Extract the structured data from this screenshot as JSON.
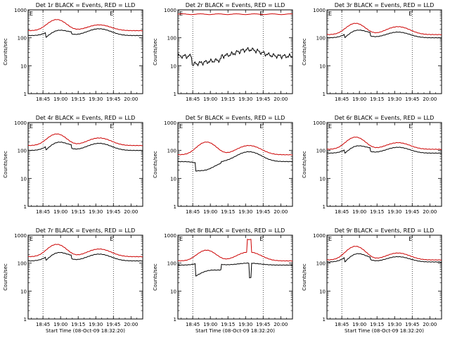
{
  "chart_data": [
    {
      "type": "line",
      "title": "Det 1r BLACK = Events, RED = LLD",
      "ylabel": "Counts/sec",
      "xlabel": "Start Time (08-Oct-09 18:32:20)",
      "show_xlabel": false,
      "x_ticks": [
        "18:45",
        "19:00",
        "19:15",
        "19:30",
        "19:45",
        "20:00"
      ],
      "y_ticks": [
        "1",
        "10",
        "100",
        "1000"
      ],
      "ylim": [
        1,
        1000
      ],
      "scale": "log",
      "xlim": [
        "18:32:20",
        "20:10"
      ],
      "vlines": [
        "18:45",
        "19:45"
      ],
      "markers": [
        "E",
        "E"
      ],
      "series": [
        {
          "color": "#cc0000",
          "shape": "bump2",
          "base": 180,
          "peak1": 450,
          "peak2": 290
        },
        {
          "color": "#000000",
          "shape": "bump2dip",
          "base": 120,
          "peak1": 200,
          "peak2": 210,
          "dip": 80
        }
      ]
    },
    {
      "type": "line",
      "title": "Det 2r BLACK = Events, RED = LLD",
      "ylabel": "Counts/sec",
      "xlabel": "Start Time (08-Oct-09 18:32:20)",
      "show_xlabel": false,
      "x_ticks": [
        "18:45",
        "19:00",
        "19:15",
        "19:30",
        "19:45",
        "20:00"
      ],
      "y_ticks": [
        "1",
        "10",
        "100",
        "1000"
      ],
      "ylim": [
        1,
        1000
      ],
      "scale": "log",
      "xlim": [
        "18:32:20",
        "20:10"
      ],
      "vlines": [
        "18:45",
        "19:45"
      ],
      "markers": [
        "E",
        "E"
      ],
      "series": [
        {
          "color": "#cc0000",
          "shape": "flat",
          "base": 700
        },
        {
          "color": "#000000",
          "shape": "noisy",
          "base": 22,
          "peak1": 15,
          "peak2": 38,
          "dip": 11
        }
      ]
    },
    {
      "type": "line",
      "title": "Det 3r BLACK = Events, RED = LLD",
      "ylabel": "Counts/sec",
      "xlabel": "Start Time (08-Oct-09 18:32:20)",
      "show_xlabel": false,
      "x_ticks": [
        "18:45",
        "19:00",
        "19:15",
        "19:30",
        "19:45",
        "20:00"
      ],
      "y_ticks": [
        "1",
        "10",
        "100",
        "1000"
      ],
      "ylim": [
        1,
        1000
      ],
      "scale": "log",
      "xlim": [
        "18:32:20",
        "20:10"
      ],
      "vlines": [
        "18:45",
        "19:45"
      ],
      "markers": [
        "E",
        "E"
      ],
      "series": [
        {
          "color": "#cc0000",
          "shape": "bump2",
          "base": 130,
          "peak1": 330,
          "peak2": 250
        },
        {
          "color": "#000000",
          "shape": "bump2dip",
          "base": 100,
          "peak1": 180,
          "peak2": 160,
          "dip": 75
        }
      ]
    },
    {
      "type": "line",
      "title": "Det 4r BLACK = Events, RED = LLD",
      "ylabel": "Counts/sec",
      "xlabel": "Start Time (08-Oct-09 18:32:20)",
      "show_xlabel": false,
      "x_ticks": [
        "18:45",
        "19:00",
        "19:15",
        "19:30",
        "19:45",
        "20:00"
      ],
      "y_ticks": [
        "1",
        "10",
        "100",
        "1000"
      ],
      "ylim": [
        1,
        1000
      ],
      "scale": "log",
      "xlim": [
        "18:32:20",
        "20:10"
      ],
      "vlines": [
        "18:45",
        "19:45"
      ],
      "markers": [
        "E",
        "E"
      ],
      "series": [
        {
          "color": "#cc0000",
          "shape": "bump2",
          "base": 150,
          "peak1": 390,
          "peak2": 280
        },
        {
          "color": "#000000",
          "shape": "bump2dip",
          "base": 100,
          "peak1": 190,
          "peak2": 180,
          "dip": 75
        }
      ]
    },
    {
      "type": "line",
      "title": "Det 5r BLACK = Events, RED = LLD",
      "ylabel": "Counts/sec",
      "xlabel": "Start Time (08-Oct-09 18:32:20)",
      "show_xlabel": false,
      "x_ticks": [
        "18:45",
        "19:00",
        "19:15",
        "19:30",
        "19:45",
        "20:00"
      ],
      "y_ticks": [
        "1",
        "10",
        "100",
        "1000"
      ],
      "ylim": [
        1,
        1000
      ],
      "scale": "log",
      "xlim": [
        "18:32:20",
        "20:10"
      ],
      "vlines": [
        "18:45",
        "19:45"
      ],
      "markers": [
        "E",
        "E"
      ],
      "series": [
        {
          "color": "#cc0000",
          "shape": "bump2",
          "base": 70,
          "peak1": 200,
          "peak2": 150
        },
        {
          "color": "#000000",
          "shape": "bump2dip",
          "base": 40,
          "peak1": 30,
          "peak2": 90,
          "dip": 20
        }
      ]
    },
    {
      "type": "line",
      "title": "Det 6r BLACK = Events, RED = LLD",
      "ylabel": "Counts/sec",
      "xlabel": "Start Time (08-Oct-09 18:32:20)",
      "show_xlabel": false,
      "x_ticks": [
        "18:45",
        "19:00",
        "19:15",
        "19:30",
        "19:45",
        "20:00"
      ],
      "y_ticks": [
        "1",
        "10",
        "100",
        "1000"
      ],
      "ylim": [
        1,
        1000
      ],
      "scale": "log",
      "xlim": [
        "18:32:20",
        "20:10"
      ],
      "vlines": [
        "18:45",
        "19:45"
      ],
      "markers": [
        "E",
        "E"
      ],
      "series": [
        {
          "color": "#cc0000",
          "shape": "bump2",
          "base": 110,
          "peak1": 300,
          "peak2": 190
        },
        {
          "color": "#000000",
          "shape": "bump2dip",
          "base": 80,
          "peak1": 140,
          "peak2": 130,
          "dip": 60
        }
      ]
    },
    {
      "type": "line",
      "title": "Det 7r BLACK = Events, RED = LLD",
      "ylabel": "Counts/sec",
      "xlabel": "Start Time (08-Oct-09 18:32:20)",
      "show_xlabel": true,
      "x_ticks": [
        "18:45",
        "19:00",
        "19:15",
        "19:30",
        "19:45",
        "20:00"
      ],
      "y_ticks": [
        "1",
        "10",
        "100",
        "1000"
      ],
      "ylim": [
        1,
        1000
      ],
      "scale": "log",
      "xlim": [
        "18:32:20",
        "20:10"
      ],
      "vlines": [
        "18:45",
        "19:45"
      ],
      "markers": [
        "E",
        "E"
      ],
      "series": [
        {
          "color": "#cc0000",
          "shape": "bump2",
          "base": 170,
          "peak1": 470,
          "peak2": 320
        },
        {
          "color": "#000000",
          "shape": "bump2dip",
          "base": 120,
          "peak1": 230,
          "peak2": 210,
          "dip": 90
        }
      ]
    },
    {
      "type": "line",
      "title": "Det 8r BLACK = Events, RED = LLD",
      "ylabel": "Counts/sec",
      "xlabel": "Start Time (08-Oct-09 18:32:20)",
      "show_xlabel": true,
      "x_ticks": [
        "18:45",
        "19:00",
        "19:15",
        "19:30",
        "19:45",
        "20:00"
      ],
      "y_ticks": [
        "1",
        "10",
        "100",
        "1000"
      ],
      "ylim": [
        1,
        1000
      ],
      "scale": "log",
      "xlim": [
        "18:32:20",
        "20:10"
      ],
      "vlines": [
        "18:45",
        "19:45"
      ],
      "markers": [
        "E",
        "E"
      ],
      "series": [
        {
          "color": "#cc0000",
          "shape": "bump2spike",
          "base": 120,
          "peak1": 290,
          "peak2": 250,
          "spike": 700
        },
        {
          "color": "#000000",
          "shape": "bump2dipspike",
          "base": 85,
          "peak1": 110,
          "peak2": 100,
          "dip": 30
        }
      ]
    },
    {
      "type": "line",
      "title": "Det 9r BLACK = Events, RED = LLD",
      "ylabel": "Counts/sec",
      "xlabel": "Start Time (08-Oct-09 18:32:20)",
      "show_xlabel": true,
      "x_ticks": [
        "18:45",
        "19:00",
        "19:15",
        "19:30",
        "19:45",
        "20:00"
      ],
      "y_ticks": [
        "1",
        "10",
        "100",
        "1000"
      ],
      "ylim": [
        1,
        1000
      ],
      "scale": "log",
      "xlim": [
        "18:32:20",
        "20:10"
      ],
      "vlines": [
        "18:45",
        "19:45"
      ],
      "markers": [
        "E",
        "E"
      ],
      "series": [
        {
          "color": "#cc0000",
          "shape": "bump2",
          "base": 130,
          "peak1": 400,
          "peak2": 230
        },
        {
          "color": "#000000",
          "shape": "bump2dip",
          "base": 110,
          "peak1": 230,
          "peak2": 170,
          "dip": 75
        }
      ]
    }
  ]
}
